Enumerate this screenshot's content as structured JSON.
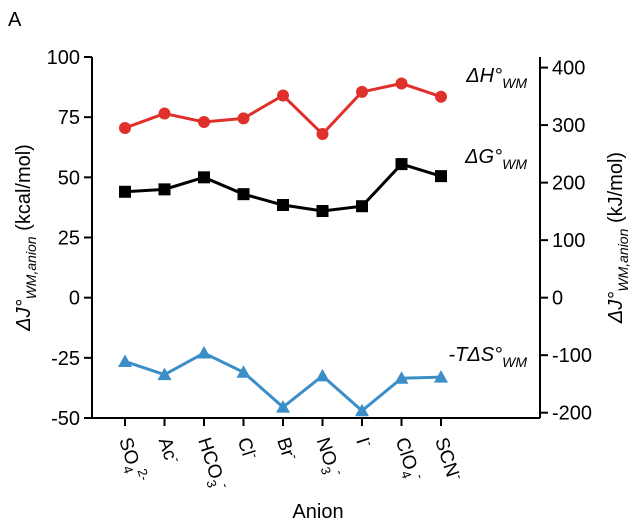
{
  "panel_label": "A",
  "chart_data": {
    "type": "line",
    "categories": [
      {
        "base": "SO",
        "sub": "4",
        "sup": "2-"
      },
      {
        "base": "Ac",
        "sub": "",
        "sup": "-"
      },
      {
        "base": "HCO",
        "sub": "3",
        "sup": "-"
      },
      {
        "base": "Cl",
        "sub": "",
        "sup": "-"
      },
      {
        "base": "Br",
        "sub": "",
        "sup": "-"
      },
      {
        "base": "NO",
        "sub": "3",
        "sup": "-"
      },
      {
        "base": "I",
        "sub": "",
        "sup": "-"
      },
      {
        "base": "ClO",
        "sub": "4",
        "sup": "-"
      },
      {
        "base": "SCN",
        "sub": "",
        "sup": "-"
      }
    ],
    "xlabel": "Anion",
    "ylabel_left": {
      "prefix": "ΔJ°",
      "sub": "WM,anion",
      "unit": "(kcal/mol)"
    },
    "ylabel_right": {
      "prefix": "ΔJ°",
      "sub": "WM,anion",
      "unit": "(kJ/mol)"
    },
    "ylim": [
      -50,
      100
    ],
    "yticks_left": [
      -50,
      -25,
      0,
      25,
      50,
      75,
      100
    ],
    "yticks_right": [
      -200,
      -100,
      0,
      100,
      200,
      300,
      400
    ],
    "kj_per_kcal": 4.184,
    "series": [
      {
        "name": "ΔH°WM",
        "label_main": "ΔH°",
        "label_sub": "WM",
        "marker": "circle",
        "color": "#e0302b",
        "values": [
          70.5,
          76.5,
          73,
          74.5,
          84,
          68,
          85.5,
          89,
          83.5
        ]
      },
      {
        "name": "ΔG°WM",
        "label_main": "ΔG°",
        "label_sub": "WM",
        "marker": "square",
        "color": "#000000",
        "values": [
          44,
          45,
          50,
          43,
          38.5,
          36,
          38,
          55.5,
          50.5
        ]
      },
      {
        "name": "-TΔS°WM",
        "label_main": "-TΔS°",
        "label_sub": "WM",
        "marker": "triangle",
        "color": "#3b8ec8",
        "values": [
          -26.5,
          -32,
          -23,
          -31,
          -45.5,
          -32.5,
          -47,
          -33.5,
          -33
        ]
      }
    ]
  }
}
